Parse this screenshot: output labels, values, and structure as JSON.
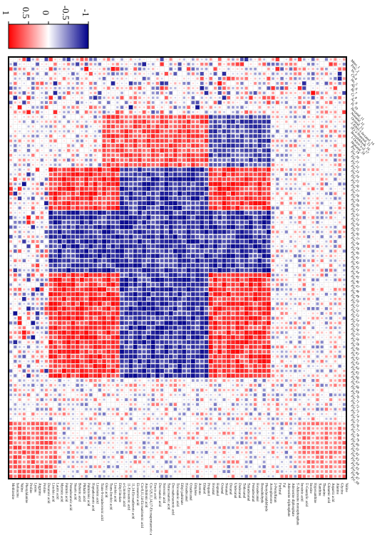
{
  "chart_data": {
    "type": "heatmap",
    "title": "",
    "xlabel": "",
    "ylabel": "",
    "orientation": "figure rotated 90 degrees clockwise; color bar at top-left",
    "colorbar": {
      "ticks": [
        "1",
        "0.5",
        "0",
        "-0.5",
        "-1"
      ],
      "range": [
        1,
        -1
      ],
      "colors": {
        "positive": "#ff0000",
        "zero": "#ffffff",
        "negative": "#00008b"
      }
    },
    "border_color": "#000000",
    "grid": true,
    "cell_encoding": "square size and color proportional to correlation coefficient",
    "bottom_labels": [
      "Methionine",
      "Isoleucine",
      "Valine",
      "Phenylalanine",
      "Proline",
      "Lysine",
      "Arginine",
      "Proline",
      "Decanoic acid",
      "Linoleic acid",
      "Lauric acid",
      "Myristic acid",
      "Palmitic acid",
      "Pentadecanoic acid",
      "Stearic acid",
      "Behenic acid",
      "Phthalic acid",
      "Palmitoleic acid",
      "Heptadecanoic acid",
      "Linolenic acid",
      "Trans-9-octadecenoic acid",
      "Oleic acid",
      "Trans-linoleic acid",
      "Linoleic acid",
      "Ethyl linolate",
      "α-Linolenic acid",
      "11-Eicosenoic acid",
      "11,14-Eicosadienoic acid",
      "Eicosanoic acid",
      "Cis-8,11,14-Eicosatrienoic acid",
      "Arachidonic acid",
      "Cis-5,8,11,14,17-Eicosapentaenoic acid",
      "Erucic acid",
      "Docosanoic acid",
      "Nervonic acid",
      "Tetracosanoic acid",
      "Docosahexaenoic acid",
      "Tricosanoic acid",
      "Ethyl palmitate",
      "Hexadecanal",
      "Octadecanal",
      "Ethylene",
      "Acetone",
      "Ethanol",
      "Propanol",
      "Hexanal",
      "Heptanal",
      "Octanal",
      "Nonanal",
      "Decanal",
      "Undecanal",
      "Dodecanal",
      "Tridecanal",
      "Tetradecanal",
      "Pentadecanal",
      "Hexadecanal",
      "Benzaldehyde",
      "Phenylacetaldehyde",
      "Acetophenone",
      "2-Pentylfuran",
      "Furfural",
      "Fal",
      "Adenosine triphosphate",
      "Adenosine diphosphate",
      "5'-Adenosine monophosphate",
      "Inosinic acid",
      "5'-Guanylic acid",
      "Inosine",
      "Hypoxanthine",
      "Xanthine",
      "Theanine",
      "Glutamic acid",
      "Aspartic acid",
      "Alanine",
      "Glycine",
      "Valine"
    ],
    "right_labels": [
      "Mmo_1",
      "Fmo_2",
      "Vo_3",
      "Ch-4",
      "Ho_5",
      "Ab_6",
      "Br_7",
      "Cr_8",
      "Ac_9",
      "Pr_10",
      "Hexanal_11",
      "Nonanal_12",
      "Octanal_13",
      "2-Ethyl-1-hexanol_14",
      "(E)-2-Nonenal_15",
      "Benzaldehyde_16",
      "1-Octen-3-ol_17",
      "Heptanal_18",
      "Pyr_19",
      "Pyr_20",
      "Pyr_21",
      "Pyr_22",
      "Pyr_23",
      "Pyr_24",
      "Pyr_25",
      "Pyr_26",
      "Pyr_27",
      "Pyr_28",
      "Pyr_29",
      "Pyr_30",
      "Pyr_31",
      "Pyr_32",
      "Pyr_33",
      "Pyr_34",
      "Pyr_35",
      "Pyr_36",
      "Pyr_37",
      "Pyr_38",
      "Pyr_39",
      "Pyr_40",
      "Pyr_41",
      "Pyr_42",
      "Pyr_43",
      "Pyr_44",
      "Pyr_45",
      "Pyr_46",
      "Pyr_47",
      "Pyr_48",
      "Pyr_49",
      "Pyr_50",
      "Pyr_51",
      "Pyr_52",
      "Pyr_53",
      "Pyr_54",
      "Pyr_55",
      "Pyr_56",
      "Pyr_57",
      "Pyr_58",
      "Pyr_59",
      "Pyr_60",
      "Pyr_61",
      "Pyr_62",
      "Pyr_63",
      "Pyr_64",
      "Pyr_65",
      "Pyr_66",
      "Pyr_67",
      "Pyr_68",
      "Pyr_69",
      "Pyr_70",
      "Pyr_71",
      "Pyr_72",
      "Pyr_73",
      "Pyr_74",
      "Pyr_75",
      "Pyr_76",
      "Pyr_77",
      "Pyr_78",
      "Pyr_79",
      "Pyr_80",
      "Pyr_81",
      "Pyr_82",
      "Pyr_83",
      "Pyr_84",
      "Pyr_85",
      "Pyr_86",
      "Pyr_87",
      "Pyr_88"
    ],
    "dimensions": {
      "rows": 88,
      "cols": 76
    },
    "block_structure": [
      {
        "rows": [
          0,
          11
        ],
        "cols": [
          0,
          75
        ],
        "pattern": "mixed"
      },
      {
        "rows": [
          12,
          22
        ],
        "cols": [
          21,
          44
        ],
        "value": 0.7
      },
      {
        "rows": [
          12,
          22
        ],
        "cols": [
          45,
          58
        ],
        "value": -0.7
      },
      {
        "rows": [
          23,
          66
        ],
        "cols": [
          0,
          8
        ],
        "pattern": "mixed"
      },
      {
        "rows": [
          23,
          66
        ],
        "cols": [
          9,
          24
        ],
        "value": 0.8
      },
      {
        "rows": [
          23,
          66
        ],
        "cols": [
          25,
          44
        ],
        "value": -0.8
      },
      {
        "rows": [
          23,
          66
        ],
        "cols": [
          45,
          58
        ],
        "value": 0.8
      },
      {
        "rows": [
          23,
          66
        ],
        "cols": [
          59,
          75
        ],
        "pattern": "weak-mixed"
      },
      {
        "rows": [
          32,
          44
        ],
        "cols": [
          9,
          24
        ],
        "value": -0.8
      },
      {
        "rows": [
          32,
          44
        ],
        "cols": [
          45,
          58
        ],
        "value": -0.8
      },
      {
        "rows": [
          67,
          75
        ],
        "cols": [
          0,
          75
        ],
        "pattern": "weak-mixed"
      },
      {
        "rows": [
          76,
          87
        ],
        "cols": [
          0,
          10
        ],
        "value": 0.6
      },
      {
        "rows": [
          76,
          87
        ],
        "cols": [
          65,
          75
        ],
        "value": 0.5
      }
    ]
  }
}
